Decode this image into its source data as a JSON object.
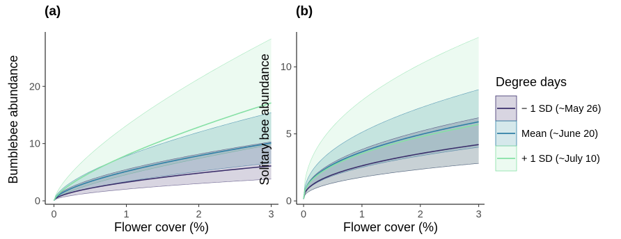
{
  "legend": {
    "title": "Degree days",
    "entries": [
      {
        "label": "− 1 SD (~May 26)",
        "line": "#3b2f6b",
        "fill": "#3b2f6b",
        "fill_opacity": 0.2
      },
      {
        "label": "Mean (~June 20)",
        "line": "#2f7fa5",
        "fill": "#2f8a9a",
        "fill_opacity": 0.2
      },
      {
        "label": "+ 1 SD (~July 10)",
        "line": "#86e0a5",
        "fill": "#9fe6b8",
        "fill_opacity": 0.2
      }
    ]
  },
  "chart_data": [
    {
      "type": "line",
      "panel_label": "(a)",
      "title": "",
      "xlabel": "Flower cover (%)",
      "ylabel": "Bumblebee abundance",
      "xlim": [
        -0.12,
        3.1
      ],
      "ylim": [
        -0.6,
        29.5
      ],
      "xticks": [
        0,
        1,
        2,
        3
      ],
      "yticks": [
        0,
        10,
        20
      ],
      "grid": false,
      "curve_form": "y = y0 + (y3 - y0) * (x / 3)^p",
      "series": [
        {
          "name": "− 1 SD (~May 26)",
          "y0": 0.05,
          "mean_at_3": 6.1,
          "lower_at_3": 3.8,
          "upper_at_3": 10.3,
          "exponent": 0.58
        },
        {
          "name": "Mean (~June 20)",
          "y0": 0.05,
          "mean_at_3": 10.1,
          "lower_at_3": 6.6,
          "upper_at_3": 15.4,
          "exponent": 0.62
        },
        {
          "name": "+ 1 SD (~July 10)",
          "y0": 0.05,
          "mean_at_3": 17.1,
          "lower_at_3": 9.8,
          "upper_at_3": 28.3,
          "exponent": 0.7
        }
      ]
    },
    {
      "type": "line",
      "panel_label": "(b)",
      "title": "",
      "xlabel": "Flower cover (%)",
      "ylabel": "Solitary bee abundance",
      "xlim": [
        -0.12,
        3.1
      ],
      "ylim": [
        -0.25,
        12.6
      ],
      "xticks": [
        0,
        1,
        2,
        3
      ],
      "yticks": [
        0,
        5,
        10
      ],
      "grid": false,
      "curve_form": "y = y0 + (y3 - y0) * (x / 3)^p",
      "series": [
        {
          "name": "− 1 SD (~May 26)",
          "y0": 0.15,
          "mean_at_3": 4.2,
          "lower_at_3": 2.8,
          "upper_at_3": 6.2,
          "exponent": 0.45
        },
        {
          "name": "Mean (~June 20)",
          "y0": 0.15,
          "mean_at_3": 5.9,
          "lower_at_3": 4.0,
          "upper_at_3": 8.3,
          "exponent": 0.45
        },
        {
          "name": "+ 1 SD (~July 10)",
          "y0": 0.15,
          "mean_at_3": 5.7,
          "lower_at_3": 2.8,
          "upper_at_3": 12.2,
          "exponent": 0.45
        }
      ]
    }
  ]
}
